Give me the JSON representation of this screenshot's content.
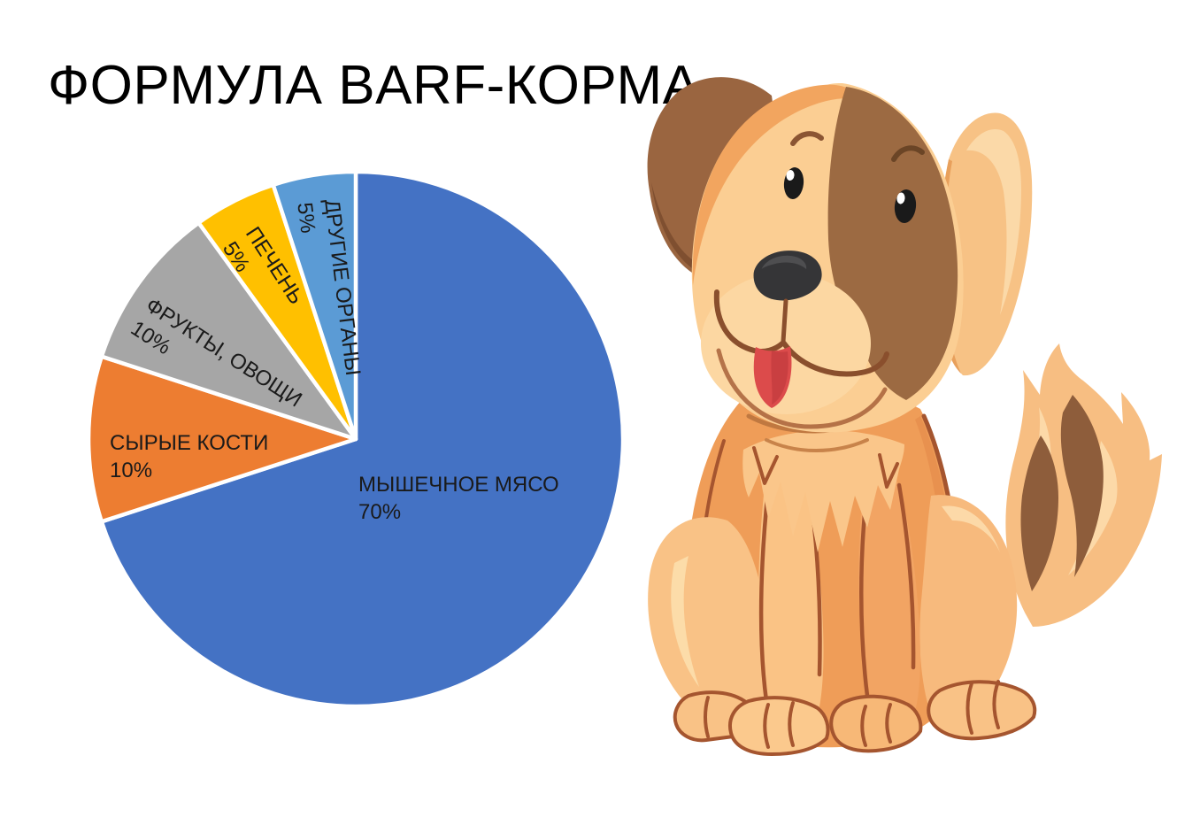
{
  "header": {
    "title": "ФОРМУЛА BARF-КОРМА"
  },
  "chart_data": {
    "type": "pie",
    "title": "ФОРМУЛА BARF-КОРМА",
    "unit": "%",
    "direction": "clockwise",
    "start_angle_deg": 0,
    "legend": "none",
    "labels_position": "inside",
    "categories": [
      "МЫШЕЧНОЕ МЯСО",
      "СЫРЫЕ КОСТИ",
      "ФРУКТЫ, ОВОЩИ",
      "ПЕЧЕНЬ",
      "ДРУГИЕ ОРГАНЫ"
    ],
    "values": [
      70,
      10,
      10,
      5,
      5
    ],
    "value_labels": [
      "70%",
      "10%",
      "10%",
      "5%",
      "5%"
    ],
    "colors": [
      "#4472C4",
      "#ED7D31",
      "#A6A6A6",
      "#FFC000",
      "#5B9BD5"
    ],
    "separator_color": "#FFFFFF",
    "label_color": "#1A1A1A"
  },
  "illustration": {
    "icon": "cartoon-dog-illustration",
    "colors": {
      "body": "#EF9D58",
      "body_light": "#FBC98D",
      "body_dark": "#E8914F",
      "face_light": "#FBCE93",
      "outline": "#A5552F",
      "ear_brown": "#9A6540",
      "patch_brown": "#9C6A42",
      "tail_brown": "#8E5D3B",
      "nose": "#353537",
      "tongue": "#DC4B4B",
      "eye": "#1A1A1A"
    }
  }
}
